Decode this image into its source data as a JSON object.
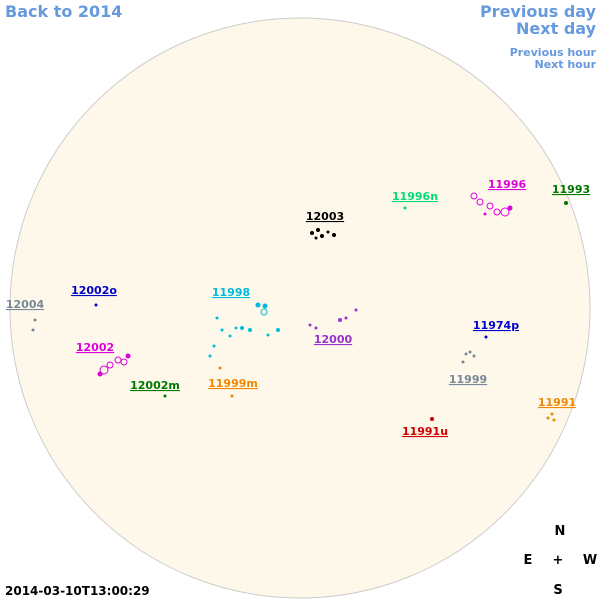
{
  "nav": {
    "back": "Back to 2014",
    "previous_day": "Previous day",
    "next_day": "Next day",
    "previous_hour": "Previous hour",
    "next_hour": "Next hour"
  },
  "regions": [
    {
      "label": "12003",
      "color": "#000000"
    },
    {
      "label": "11996n",
      "color": "#00dd77"
    },
    {
      "label": "11996",
      "color": "#dd00dd"
    },
    {
      "label": "11993",
      "color": "#007700"
    },
    {
      "label": "12002o",
      "color": "#0000cc"
    },
    {
      "label": "11998",
      "color": "#00bbdd"
    },
    {
      "label": "12004",
      "color": "#778899"
    },
    {
      "label": "12000",
      "color": "#9933cc"
    },
    {
      "label": "11974p",
      "color": "#0000cc"
    },
    {
      "label": "12002",
      "color": "#dd00dd"
    },
    {
      "label": "12002m",
      "color": "#007700"
    },
    {
      "label": "11999m",
      "color": "#ee8800"
    },
    {
      "label": "11999",
      "color": "#778899"
    },
    {
      "label": "11991",
      "color": "#ee8800"
    },
    {
      "label": "11991u",
      "color": "#cc0000"
    }
  ],
  "compass": {
    "n": "N",
    "e": "E",
    "center": "+",
    "w": "W",
    "s": "S"
  },
  "timestamp": "2014-03-10T13:00:29"
}
